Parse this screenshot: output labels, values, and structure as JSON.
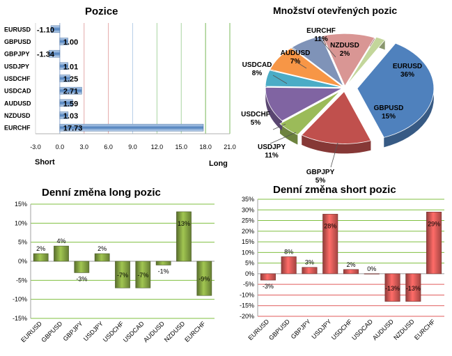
{
  "chart_data": [
    {
      "id": "positions",
      "type": "bar",
      "orientation": "horizontal",
      "title": "Pozice",
      "categories": [
        "EURUSD",
        "GBPUSD",
        "GBPJPY",
        "USDJPY",
        "USDCHF",
        "USDCAD",
        "AUDUSD",
        "NZDUSD",
        "EURCHF"
      ],
      "values": [
        -1.1,
        1.0,
        -1.34,
        1.01,
        1.25,
        2.71,
        1.59,
        1.03,
        17.73
      ],
      "value_labels": [
        "-1.10",
        "1.00",
        "-1.34",
        "1.01",
        "1.25",
        "2.71",
        "1.59",
        "1.03",
        "17.73"
      ],
      "xlim": [
        -3.0,
        21.0
      ],
      "xticks": [
        "-3.0",
        "0.0",
        "3.0",
        "6.0",
        "9.0",
        "12.0",
        "15.0",
        "18.0",
        "21.0"
      ],
      "short_label": "Short",
      "long_label": "Long",
      "bar_color": "#4f81bd"
    },
    {
      "id": "open-positions",
      "type": "pie",
      "title": "Množství otevřených pozic",
      "slices": [
        {
          "label": "EURUSD",
          "value": 36,
          "pct": "36%",
          "color": "#4f81bd"
        },
        {
          "label": "GBPUSD",
          "value": 15,
          "pct": "15%",
          "color": "#c0504d"
        },
        {
          "label": "GBPJPY",
          "value": 5,
          "pct": "5%",
          "color": "#9bbb59"
        },
        {
          "label": "USDJPY",
          "value": 11,
          "pct": "11%",
          "color": "#8064a2"
        },
        {
          "label": "USDCHF",
          "value": 5,
          "pct": "5%",
          "color": "#4bacc6"
        },
        {
          "label": "USDCAD",
          "value": 8,
          "pct": "8%",
          "color": "#f79646"
        },
        {
          "label": "AUDUSD",
          "value": 7,
          "pct": "7%",
          "color": "#7f93b8"
        },
        {
          "label": "EURCHF",
          "value": 11,
          "pct": "11%",
          "color": "#d99694"
        },
        {
          "label": "NZDUSD",
          "value": 2,
          "pct": "2%",
          "color": "#c3d69b"
        }
      ]
    },
    {
      "id": "daily-long",
      "type": "bar",
      "title": "Denní změna long pozic",
      "categories": [
        "EURUSD",
        "GBPUSD",
        "GBPJPY",
        "USDJPY",
        "USDCHF",
        "USDCAD",
        "AUDUSD",
        "NZDUSD",
        "EURCHF"
      ],
      "values": [
        2,
        4,
        -3,
        2,
        -7,
        -7,
        -1,
        13,
        -9
      ],
      "value_labels": [
        "2%",
        "4%",
        "-3%",
        "2%",
        "-7%",
        "-7%",
        "-1%",
        "13%",
        "-9%"
      ],
      "ylim": [
        -15,
        15
      ],
      "yticks": [
        "-15%",
        "-10%",
        "-5%",
        "0%",
        "5%",
        "10%",
        "15%"
      ],
      "bar_color": "#77933c",
      "grid_color": "#7fbf3f"
    },
    {
      "id": "daily-short",
      "type": "bar",
      "title": "Denní změna short pozic",
      "categories": [
        "EURUSD",
        "GBPUSD",
        "GBPJPY",
        "USDJPY",
        "USDCHF",
        "USDCAD",
        "AUDUSD",
        "NZDUSD",
        "EURCHF"
      ],
      "values": [
        -3,
        8,
        3,
        28,
        2,
        0,
        -13,
        -13,
        29
      ],
      "value_labels": [
        "-3%",
        "8%",
        "3%",
        "28%",
        "2%",
        "0%",
        "-13%",
        "-13%",
        "29%"
      ],
      "ylim": [
        -20,
        35
      ],
      "yticks": [
        "-20%",
        "-15%",
        "-10%",
        "-5%",
        "0%",
        "5%",
        "10%",
        "15%",
        "20%",
        "25%",
        "30%",
        "35%"
      ],
      "bar_color": "#c0504d",
      "grid_top_color": "#7fbf3f",
      "grid_bottom_color": "#e05a5a"
    }
  ]
}
